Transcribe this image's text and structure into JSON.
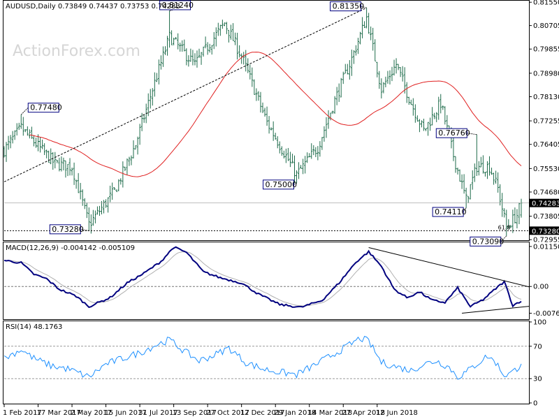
{
  "chart_data": [
    {
      "panel": "price",
      "type": "ohlc",
      "label": "AUDUSD,Daily  0.73849 0.74437 0.73753 0.74283",
      "symbol": "AUDUSD",
      "timeframe": "Daily",
      "ohlc_last": {
        "open": 0.73849,
        "high": 0.74437,
        "low": 0.73753,
        "close": 0.74283
      },
      "current_price_label": "0.74283",
      "support_label": "0.73280",
      "fib_label": "61.8",
      "ylim": [
        0.7296,
        0.8158
      ],
      "yticks": [
        "0.81550",
        "0.80705",
        "0.79855",
        "0.78980",
        "0.78130",
        "0.77255",
        "0.76405",
        "0.75530",
        "0.74680",
        "0.73805",
        "0.72955"
      ],
      "ytick_values": [
        0.8155,
        0.80705,
        0.79855,
        0.7898,
        0.7813,
        0.77255,
        0.76405,
        0.7553,
        0.7468,
        0.73805,
        0.72955
      ],
      "ma_color": "#e02020",
      "bar_color": "#1d6b4a",
      "callouts": [
        {
          "label": "0.77480",
          "bar": 8,
          "value": 0.7748
        },
        {
          "label": "0.73280",
          "bar": 40,
          "value": 0.7328
        },
        {
          "label": "0.81240",
          "bar": 78,
          "value": 0.8124
        },
        {
          "label": "0.75000",
          "bar": 138,
          "value": 0.75
        },
        {
          "label": "0.81350",
          "bar": 171,
          "value": 0.8135
        },
        {
          "label": "0.74110",
          "bar": 218,
          "value": 0.7411
        },
        {
          "label": "0.76760",
          "bar": 223,
          "value": 0.7676
        },
        {
          "label": "0.73090",
          "bar": 237,
          "value": 0.7309
        }
      ],
      "trendline": {
        "from": {
          "bar": 0,
          "value": 0.7505
        },
        "to": {
          "bar": 171,
          "value": 0.8135
        }
      },
      "anchors": [
        {
          "bar": 0,
          "close": 0.762
        },
        {
          "bar": 8,
          "close": 0.77
        },
        {
          "bar": 14,
          "close": 0.765
        },
        {
          "bar": 24,
          "close": 0.757
        },
        {
          "bar": 32,
          "close": 0.756
        },
        {
          "bar": 40,
          "close": 0.735
        },
        {
          "bar": 52,
          "close": 0.747
        },
        {
          "bar": 62,
          "close": 0.764
        },
        {
          "bar": 70,
          "close": 0.784
        },
        {
          "bar": 78,
          "close": 0.803
        },
        {
          "bar": 90,
          "close": 0.793
        },
        {
          "bar": 104,
          "close": 0.808
        },
        {
          "bar": 112,
          "close": 0.796
        },
        {
          "bar": 124,
          "close": 0.772
        },
        {
          "bar": 138,
          "close": 0.753
        },
        {
          "bar": 148,
          "close": 0.763
        },
        {
          "bar": 156,
          "close": 0.78
        },
        {
          "bar": 164,
          "close": 0.795
        },
        {
          "bar": 171,
          "close": 0.81
        },
        {
          "bar": 178,
          "close": 0.784
        },
        {
          "bar": 185,
          "close": 0.793
        },
        {
          "bar": 192,
          "close": 0.779
        },
        {
          "bar": 198,
          "close": 0.769
        },
        {
          "bar": 206,
          "close": 0.779
        },
        {
          "bar": 212,
          "close": 0.76
        },
        {
          "bar": 218,
          "close": 0.744
        },
        {
          "bar": 223,
          "close": 0.756
        },
        {
          "bar": 229,
          "close": 0.756
        },
        {
          "bar": 233,
          "close": 0.748
        },
        {
          "bar": 237,
          "close": 0.734
        },
        {
          "bar": 242,
          "close": 0.7385
        },
        {
          "bar": 244,
          "close": 0.74283
        }
      ]
    },
    {
      "panel": "macd",
      "type": "line",
      "label": "MACD(12,26,9) -0.004142 -0.005109",
      "params": "12,26,9",
      "macd_value": "-0.004142",
      "signal_value": "-0.005109",
      "ylim": [
        -0.0092,
        0.0125
      ],
      "yticks": [
        "0.011508",
        "0.00",
        "-0.007694"
      ],
      "ytick_values": [
        0.011508,
        0.0,
        -0.007694
      ],
      "macd_color": "#00007f",
      "signal_color": "#b0b0b0",
      "anchors": [
        {
          "bar": 0,
          "value": 0.0075
        },
        {
          "bar": 8,
          "value": 0.0068
        },
        {
          "bar": 14,
          "value": 0.0035
        },
        {
          "bar": 20,
          "value": 0.0022
        },
        {
          "bar": 26,
          "value": -0.0008
        },
        {
          "bar": 34,
          "value": -0.0028
        },
        {
          "bar": 40,
          "value": -0.0058
        },
        {
          "bar": 50,
          "value": -0.0032
        },
        {
          "bar": 58,
          "value": 0.001
        },
        {
          "bar": 66,
          "value": 0.0038
        },
        {
          "bar": 74,
          "value": 0.0072
        },
        {
          "bar": 80,
          "value": 0.0113
        },
        {
          "bar": 86,
          "value": 0.0098
        },
        {
          "bar": 94,
          "value": 0.0042
        },
        {
          "bar": 102,
          "value": 0.0025
        },
        {
          "bar": 112,
          "value": 0.001
        },
        {
          "bar": 120,
          "value": -0.0022
        },
        {
          "bar": 130,
          "value": -0.0052
        },
        {
          "bar": 140,
          "value": -0.006
        },
        {
          "bar": 150,
          "value": -0.004
        },
        {
          "bar": 158,
          "value": 0.001
        },
        {
          "bar": 166,
          "value": 0.007
        },
        {
          "bar": 172,
          "value": 0.01
        },
        {
          "bar": 178,
          "value": 0.0058
        },
        {
          "bar": 184,
          "value": -0.0008
        },
        {
          "bar": 190,
          "value": -0.0032
        },
        {
          "bar": 196,
          "value": -0.0016
        },
        {
          "bar": 202,
          "value": -0.004
        },
        {
          "bar": 208,
          "value": -0.0046
        },
        {
          "bar": 214,
          "value": -0.0004
        },
        {
          "bar": 220,
          "value": -0.0058
        },
        {
          "bar": 226,
          "value": -0.0038
        },
        {
          "bar": 232,
          "value": -0.0006
        },
        {
          "bar": 236,
          "value": 0.0014
        },
        {
          "bar": 240,
          "value": -0.0055
        },
        {
          "bar": 244,
          "value": -0.0041
        }
      ],
      "trendlines": [
        {
          "from": {
            "bar": 172,
            "value": 0.0112
          },
          "to": {
            "bar": 250,
            "value": -0.0001
          }
        },
        {
          "from": {
            "bar": 216,
            "value": -0.0077
          },
          "to": {
            "bar": 250,
            "value": -0.0057
          }
        }
      ]
    },
    {
      "panel": "rsi",
      "type": "line",
      "label": "RSI(14) 48.1763",
      "params": "14",
      "rsi_value": "48.1763",
      "ylim": [
        0,
        100
      ],
      "yticks": [
        "100",
        "70",
        "30",
        "0"
      ],
      "ytick_values": [
        100,
        70,
        30,
        0
      ],
      "levels": [
        70,
        30
      ],
      "rsi_color": "#1e90ff",
      "anchors": [
        {
          "bar": 0,
          "value": 55
        },
        {
          "bar": 8,
          "value": 66
        },
        {
          "bar": 14,
          "value": 55
        },
        {
          "bar": 22,
          "value": 46
        },
        {
          "bar": 30,
          "value": 42
        },
        {
          "bar": 40,
          "value": 32
        },
        {
          "bar": 48,
          "value": 48
        },
        {
          "bar": 56,
          "value": 55
        },
        {
          "bar": 64,
          "value": 62
        },
        {
          "bar": 72,
          "value": 72
        },
        {
          "bar": 78,
          "value": 78
        },
        {
          "bar": 86,
          "value": 62
        },
        {
          "bar": 92,
          "value": 52
        },
        {
          "bar": 100,
          "value": 60
        },
        {
          "bar": 106,
          "value": 68
        },
        {
          "bar": 114,
          "value": 50
        },
        {
          "bar": 122,
          "value": 42
        },
        {
          "bar": 130,
          "value": 38
        },
        {
          "bar": 138,
          "value": 35
        },
        {
          "bar": 146,
          "value": 46
        },
        {
          "bar": 154,
          "value": 58
        },
        {
          "bar": 162,
          "value": 70
        },
        {
          "bar": 168,
          "value": 80
        },
        {
          "bar": 172,
          "value": 76
        },
        {
          "bar": 178,
          "value": 50
        },
        {
          "bar": 186,
          "value": 44
        },
        {
          "bar": 192,
          "value": 40
        },
        {
          "bar": 198,
          "value": 48
        },
        {
          "bar": 204,
          "value": 52
        },
        {
          "bar": 210,
          "value": 44
        },
        {
          "bar": 214,
          "value": 32
        },
        {
          "bar": 218,
          "value": 38
        },
        {
          "bar": 224,
          "value": 50
        },
        {
          "bar": 228,
          "value": 58
        },
        {
          "bar": 232,
          "value": 50
        },
        {
          "bar": 236,
          "value": 34
        },
        {
          "bar": 240,
          "value": 38
        },
        {
          "bar": 244,
          "value": 48
        }
      ]
    }
  ],
  "x_axis": {
    "labels": [
      "1 Feb 2017",
      "17 Mar 2017",
      "2 May 2017",
      "15 Jun 2017",
      "31 Jul 2017",
      "13 Sep 2017",
      "27 Oct 2017",
      "12 Dec 2017",
      "29 Jan 2018",
      "14 Mar 2018",
      "27 Apr 2018",
      "12 Jun 2018"
    ],
    "label_bars": [
      0,
      16,
      32,
      48,
      64,
      80,
      96,
      112,
      128,
      144,
      160,
      176
    ]
  },
  "watermark": "ActionForex.com",
  "bar_count": 245
}
